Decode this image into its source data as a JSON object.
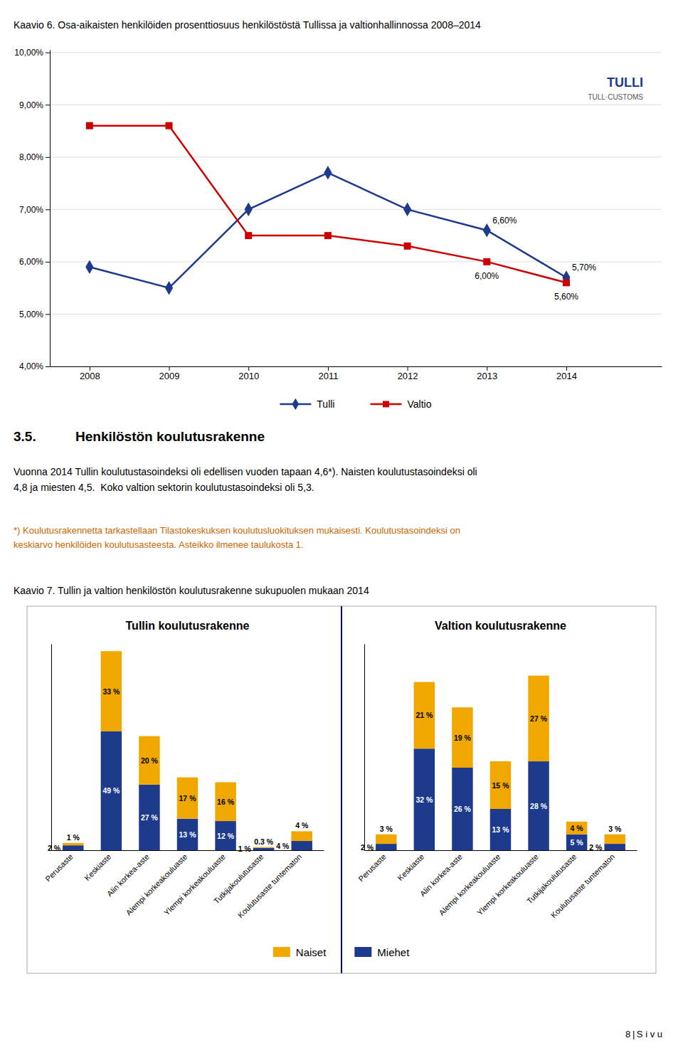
{
  "chart_data": [
    {
      "type": "line",
      "title": "Kaavio 6. Osa-aikaisten henkilöiden prosenttiosuus henkilöstöstä Tullissa ja valtionhallinnossa 2008–2014",
      "x": [
        2008,
        2009,
        2010,
        2011,
        2012,
        2013,
        2014
      ],
      "xlim": [
        2007.5,
        2015.2
      ],
      "xticks": [
        2008,
        2009,
        2010,
        2011,
        2012,
        2013,
        2014
      ],
      "ylim": [
        4.0,
        10.05
      ],
      "yticks": [
        {
          "value": 4.0,
          "label": "4,00%"
        },
        {
          "value": 5.0,
          "label": "5,00%"
        },
        {
          "value": 6.0,
          "label": "6,00%"
        },
        {
          "value": 7.0,
          "label": "7,00%"
        },
        {
          "value": 8.0,
          "label": "8,00%"
        },
        {
          "value": 9.0,
          "label": "9,00%"
        },
        {
          "value": 10.0,
          "label": "10,00%"
        }
      ],
      "grid": true,
      "legend": "bottom",
      "data_labels": true,
      "series": [
        {
          "name": "Tulli",
          "color": "#1E3A8C",
          "marker": "diamond",
          "values": [
            5.9,
            5.5,
            7.0,
            7.7,
            7.0,
            6.6,
            5.7
          ],
          "value_labels": [
            null,
            null,
            null,
            null,
            null,
            "6,60%",
            "5,70%"
          ]
        },
        {
          "name": "Valtio",
          "color": "#CC0000",
          "marker": "square",
          "values": [
            8.6,
            8.6,
            6.5,
            6.5,
            6.3,
            6.0,
            5.6
          ],
          "value_labels": [
            null,
            null,
            null,
            null,
            null,
            "6,00%",
            "5,60%"
          ]
        }
      ],
      "annotations": [
        {
          "text": "TULLI"
        },
        {
          "text": "TULL·CUSTOMS"
        }
      ]
    },
    {
      "type": "bar",
      "title": "Tullin koulutusrakenne",
      "stacked": true,
      "categories": [
        "Perusaste",
        "Keskiaste",
        "Alin korkea-aste",
        "Alempi korkeakouluaste",
        "Ylempi korkeakouluaste",
        "Tutkijakoulutusaste",
        "Koulutusaste tuntematon"
      ],
      "ylim": [
        0,
        85
      ],
      "tick_labels": "x",
      "data_labels": true,
      "legend": "bottom",
      "series": [
        {
          "name": "Miehet",
          "color": "#1E3A8C",
          "values": [
            2,
            49,
            27,
            13,
            12,
            1,
            3.8
          ],
          "value_labels": [
            "2 %",
            "49 %",
            "27 %",
            "13 %",
            "12 %",
            "1 %",
            "4 %"
          ]
        },
        {
          "name": "Naiset",
          "color": "#F0A800",
          "values": [
            1,
            33,
            20,
            17,
            16,
            0.3,
            4
          ],
          "value_labels": [
            "1 %",
            "33 %",
            "20 %",
            "17 %",
            "16 %",
            "0.3 %",
            "4 %"
          ]
        }
      ]
    },
    {
      "type": "bar",
      "title": "Valtion koulutusrakenne",
      "stacked": true,
      "categories": [
        "Perusaste",
        "Keskiaste",
        "Alin korkea-aste",
        "Alempi korkeakouluaste",
        "Ylempi korkeakouluaste",
        "Tutkijakoulutusaste",
        "Koulutusaste tuntematon"
      ],
      "ylim": [
        0,
        65
      ],
      "tick_labels": "x",
      "data_labels": true,
      "series": [
        {
          "name": "Miehet",
          "color": "#1E3A8C",
          "values": [
            2,
            32,
            26,
            13,
            28,
            5,
            2
          ],
          "value_labels": [
            "2 %",
            "32 %",
            "26 %",
            "13 %",
            "28 %",
            "5 %",
            "2 %"
          ]
        },
        {
          "name": "Naiset",
          "color": "#F0A800",
          "values": [
            3,
            21,
            19,
            15,
            27,
            4,
            3
          ],
          "value_labels": [
            "3 %",
            "21 %",
            "19 %",
            "15 %",
            "27 %",
            "4 %",
            "3 %"
          ]
        }
      ]
    }
  ],
  "page": {
    "heading_number": "3.5.",
    "heading": "Henkilöstön koulutusrakenne",
    "body": [
      "Vuonna 2014 Tullin koulutustasoindeksi oli edellisen vuoden tapaan 4,6*). Naisten koulutustasoindeksi oli",
      "4,8 ja miesten 4,5.  Koko valtion sektorin koulutustasoindeksi oli 5,3."
    ],
    "footnote": [
      "*) Koulutusrakennetta tarkastellaan Tilastokeskuksen koulutusluokituksen mukaisesti. Koulutustasoindeksi on",
      "keskiarvo henkilöiden koulutusasteesta. Asteikko ilmenee taulukosta 1."
    ],
    "footnote_color": "#CC6600",
    "figure_title": "Kaavio 7. Tullin ja valtion henkilöstön koulutusrakenne sukupuolen mukaan 2014",
    "page_number": "8 | S i v u"
  }
}
